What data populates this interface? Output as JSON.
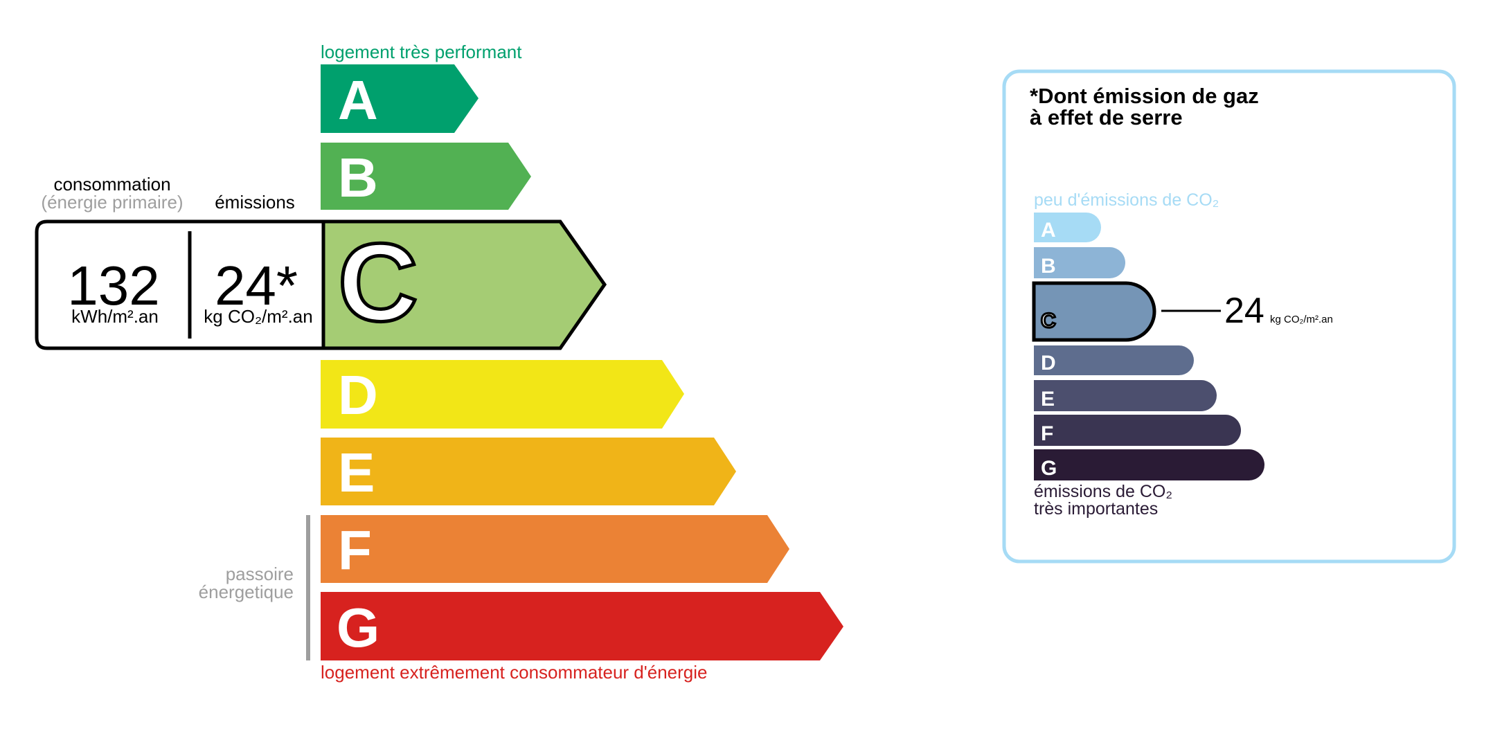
{
  "dpe": {
    "top_label": "logement très performant",
    "bottom_label": "logement extrêmement consommateur d'énergie",
    "passoire_line1": "passoire",
    "passoire_line2": "énergetique",
    "consumption_header": "consommation",
    "consumption_subheader": "(énergie primaire)",
    "emissions_header": "émissions",
    "consumption_value": "132",
    "consumption_unit": "kWh/m².an",
    "emissions_value": "24*",
    "emissions_unit": "kg CO₂/m².an",
    "current_class": "C",
    "classes": [
      {
        "letter": "A",
        "color": "#00a06d"
      },
      {
        "letter": "B",
        "color": "#52b153"
      },
      {
        "letter": "C",
        "color": "#a5cc74"
      },
      {
        "letter": "D",
        "color": "#f2e617"
      },
      {
        "letter": "E",
        "color": "#f0b418"
      },
      {
        "letter": "F",
        "color": "#eb8235"
      },
      {
        "letter": "G",
        "color": "#d7221f"
      }
    ],
    "top_label_color": "#00a06d",
    "bottom_label_color": "#d7221f"
  },
  "ges": {
    "title_line1": "*Dont émission de gaz",
    "title_line2": "à effet de serre",
    "top_label": "peu d'émissions de CO₂",
    "bottom_label_line1": "émissions de CO₂",
    "bottom_label_line2": "très importantes",
    "value": "24",
    "unit": "kg CO₂/m².an",
    "current_class": "C",
    "border_color": "#a6dbf5",
    "classes": [
      {
        "letter": "A",
        "color": "#a6dbf5"
      },
      {
        "letter": "B",
        "color": "#8db4d6"
      },
      {
        "letter": "C",
        "color": "#7595b6"
      },
      {
        "letter": "D",
        "color": "#5e6d8e"
      },
      {
        "letter": "E",
        "color": "#4c4f6e"
      },
      {
        "letter": "F",
        "color": "#3a3552"
      },
      {
        "letter": "G",
        "color": "#2a1b35"
      }
    ]
  }
}
